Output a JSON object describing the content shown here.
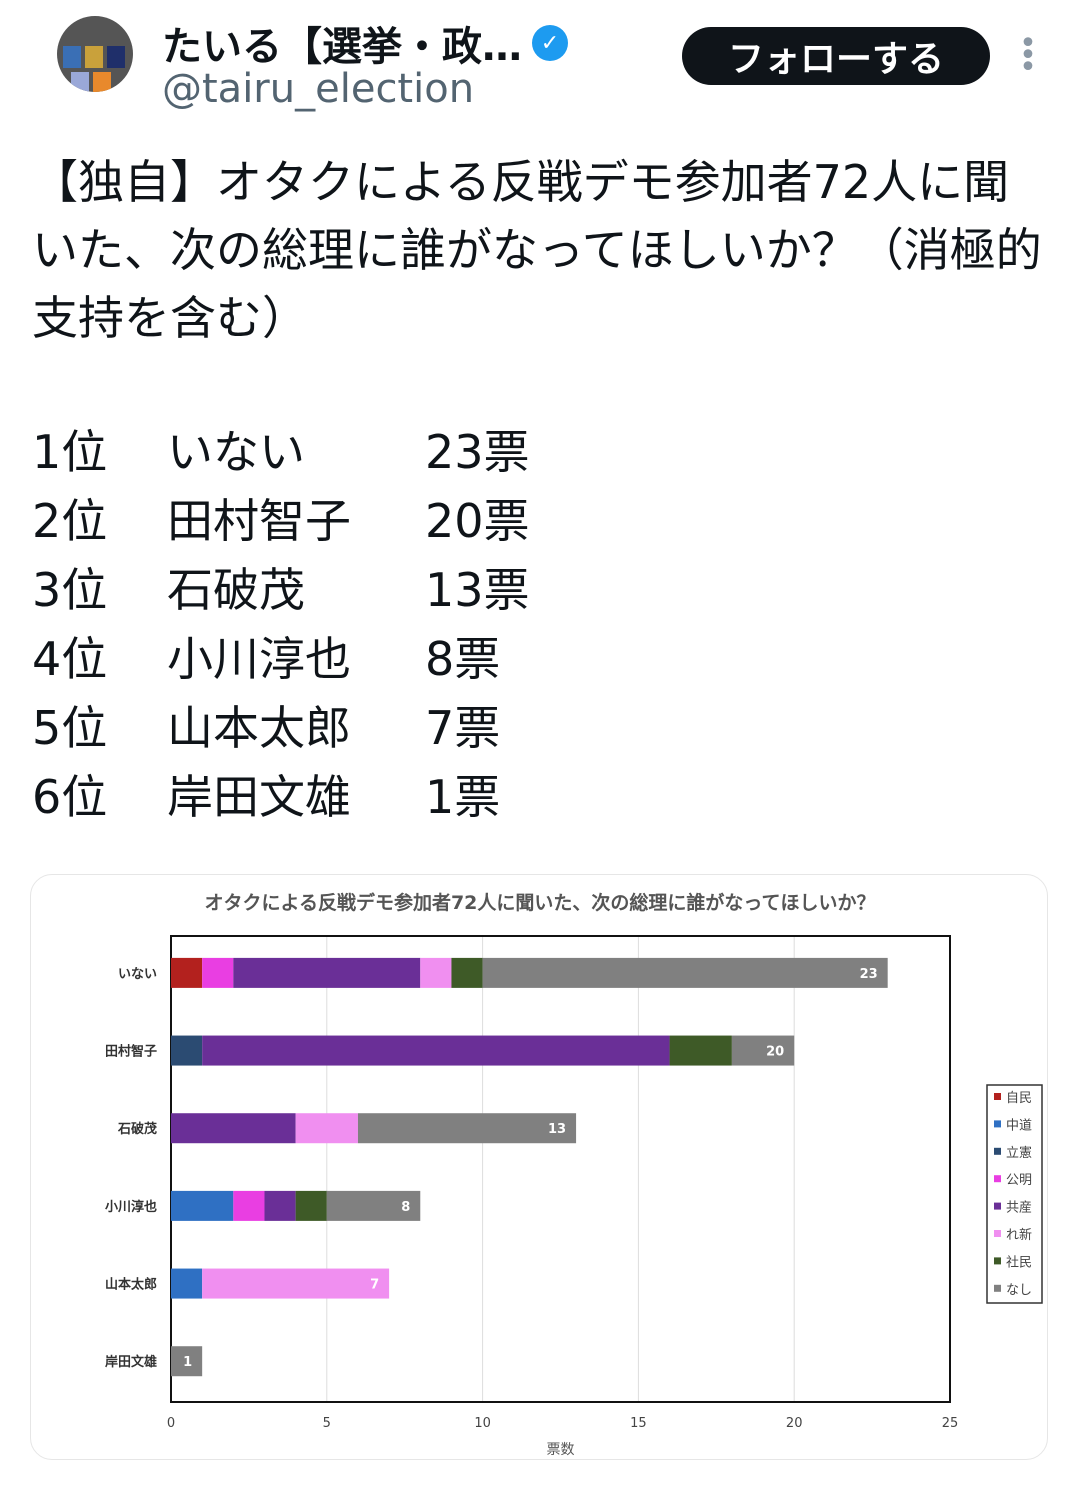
{
  "header": {
    "display_name": "たいる【選挙・政…",
    "handle": "@tairu_election",
    "follow_label": "フォローする",
    "more_icon": "more-vertical-icon",
    "verified_icon": "verified-badge-icon"
  },
  "tweet": {
    "text": "【独自】オタクによる反戦デモ参加者72人に聞いた、次の総理に誰がなってほしいか？（消極的支持を含む）",
    "ranking": [
      {
        "rank": "1位",
        "name": "いない",
        "votes": "23票"
      },
      {
        "rank": "2位",
        "name": "田村智子",
        "votes": "20票"
      },
      {
        "rank": "3位",
        "name": "石破茂",
        "votes": "13票"
      },
      {
        "rank": "4位",
        "name": "小川淳也",
        "votes": "8票"
      },
      {
        "rank": "5位",
        "name": "山本太郎",
        "votes": "7票"
      },
      {
        "rank": "6位",
        "name": "岸田文雄",
        "votes": "1票"
      }
    ]
  },
  "chart_data": {
    "type": "bar",
    "orientation": "horizontal",
    "stacked": true,
    "title": "オタクによる反戦デモ参加者72人に聞いた、次の総理に誰がなってほしいか？",
    "xlabel": "票数",
    "ylabel": "",
    "xlim": [
      0,
      25
    ],
    "xticks": [
      0,
      5,
      10,
      15,
      20,
      25
    ],
    "grid": true,
    "legend": "right",
    "categories": [
      "いない",
      "田村智子",
      "石破茂",
      "小川淳也",
      "山本太郎",
      "岸田文雄"
    ],
    "totals": [
      23,
      20,
      13,
      8,
      7,
      1
    ],
    "series": [
      {
        "name": "自民",
        "color": "#b3211e",
        "values": [
          1,
          0,
          0,
          0,
          0,
          0
        ]
      },
      {
        "name": "中道",
        "color": "#2f70c3",
        "values": [
          0,
          0,
          0,
          2,
          1,
          0
        ]
      },
      {
        "name": "立憲",
        "color": "#2b4b72",
        "values": [
          0,
          1,
          0,
          0,
          0,
          0
        ]
      },
      {
        "name": "公明",
        "color": "#e93ee2",
        "values": [
          1,
          0,
          0,
          1,
          0,
          0
        ]
      },
      {
        "name": "共産",
        "color": "#6a2f97",
        "values": [
          6,
          15,
          4,
          1,
          0,
          0
        ]
      },
      {
        "name": "れ新",
        "color": "#f08ff0",
        "values": [
          1,
          0,
          2,
          0,
          6,
          0
        ]
      },
      {
        "name": "社民",
        "color": "#3e5a27",
        "values": [
          1,
          2,
          0,
          1,
          0,
          0
        ]
      },
      {
        "name": "なし",
        "color": "#808080",
        "values": [
          13,
          2,
          7,
          3,
          0,
          1
        ]
      }
    ]
  }
}
